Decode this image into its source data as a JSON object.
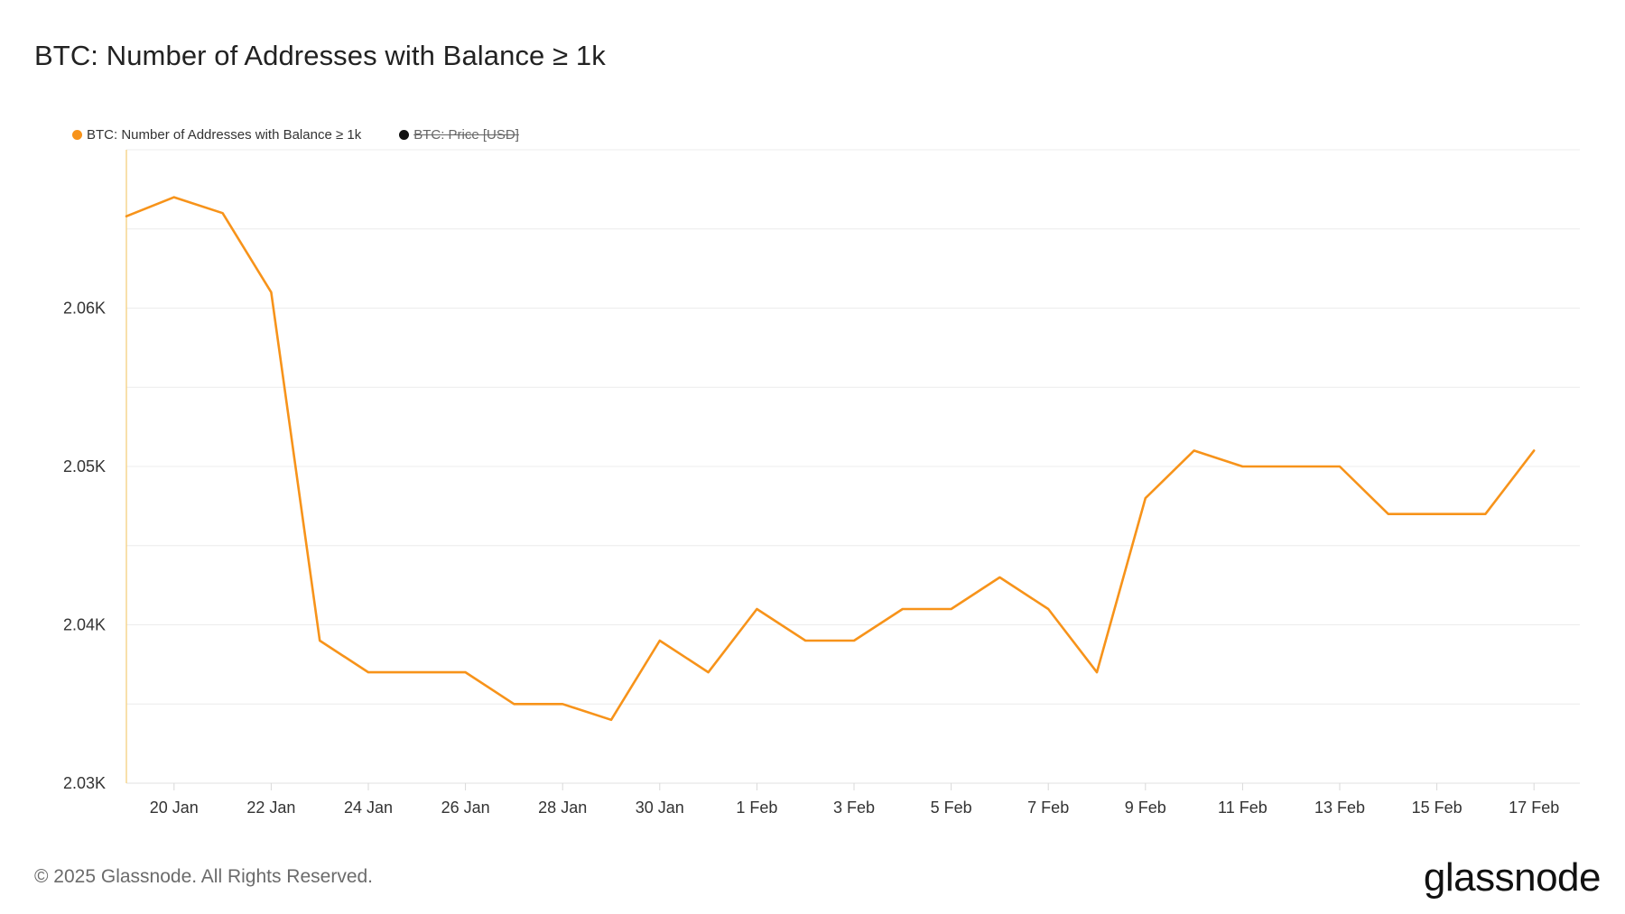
{
  "title": "BTC: Number of Addresses with Balance ≥ 1k",
  "legend": [
    {
      "label": "BTC: Number of Addresses with Balance ≥ 1k",
      "color": "#f7931a",
      "disabled": false
    },
    {
      "label": "BTC: Price [USD]",
      "color": "#111111",
      "disabled": true
    }
  ],
  "footer": {
    "copyright": "© 2025 Glassnode. All Rights Reserved.",
    "brand": "glassnode"
  },
  "chart_data": {
    "type": "line",
    "title": "BTC: Number of Addresses with Balance ≥ 1k",
    "xlabel": "",
    "ylabel": "",
    "ylim": [
      2030,
      2070
    ],
    "grid": true,
    "legend_position": "top-left",
    "y_ticks": [
      {
        "value": 2030,
        "label": "2.03K"
      },
      {
        "value": 2040,
        "label": "2.04K"
      },
      {
        "value": 2050,
        "label": "2.05K"
      },
      {
        "value": 2060,
        "label": "2.06K"
      }
    ],
    "x_ticks": [
      "20 Jan",
      "22 Jan",
      "24 Jan",
      "26 Jan",
      "28 Jan",
      "30 Jan",
      "1 Feb",
      "3 Feb",
      "5 Feb",
      "7 Feb",
      "9 Feb",
      "11 Feb",
      "13 Feb",
      "15 Feb",
      "17 Feb"
    ],
    "x": [
      "19 Jan",
      "20 Jan",
      "21 Jan",
      "22 Jan",
      "23 Jan",
      "24 Jan",
      "25 Jan",
      "26 Jan",
      "27 Jan",
      "28 Jan",
      "29 Jan",
      "30 Jan",
      "31 Jan",
      "1 Feb",
      "2 Feb",
      "3 Feb",
      "4 Feb",
      "5 Feb",
      "6 Feb",
      "7 Feb",
      "8 Feb",
      "9 Feb",
      "10 Feb",
      "11 Feb",
      "12 Feb",
      "13 Feb",
      "14 Feb",
      "15 Feb",
      "16 Feb",
      "17 Feb"
    ],
    "series": [
      {
        "name": "BTC: Number of Addresses with Balance ≥ 1k",
        "color": "#f7931a",
        "values": [
          2065.8,
          2067,
          2066,
          2061,
          2039,
          2037,
          2037,
          2037,
          2035,
          2035,
          2034,
          2039,
          2037,
          2041,
          2039,
          2039,
          2041,
          2041,
          2043,
          2041,
          2037,
          2048,
          2051,
          2050,
          2050,
          2050,
          2047,
          2047,
          2047,
          2051
        ]
      }
    ]
  }
}
